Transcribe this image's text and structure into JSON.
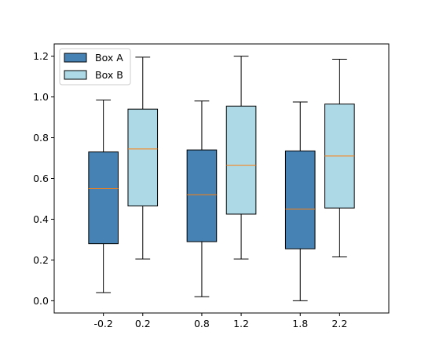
{
  "chart_data": {
    "type": "box",
    "title": "",
    "xlabel": "",
    "ylabel": "",
    "xlim": [
      -0.7,
      2.7
    ],
    "ylim": [
      -0.06,
      1.26
    ],
    "x_ticks": [
      -0.2,
      0.2,
      0.8,
      1.2,
      1.8,
      2.2
    ],
    "x_tick_labels": [
      "-0.2",
      "0.2",
      "0.8",
      "1.2",
      "1.8",
      "2.2"
    ],
    "y_ticks": [
      0.0,
      0.2,
      0.4,
      0.6,
      0.8,
      1.0,
      1.2
    ],
    "y_tick_labels": [
      "0.0",
      "0.2",
      "0.4",
      "0.6",
      "0.8",
      "1.0",
      "1.2"
    ],
    "grid": false,
    "legend_position": "top-left",
    "box_width": 0.3,
    "median_color": "#ff7f0e",
    "series": [
      {
        "name": "Box A",
        "color": "#4682b4",
        "boxes": [
          {
            "x": -0.2,
            "whisker_low": 0.04,
            "q1": 0.28,
            "median": 0.55,
            "q3": 0.73,
            "whisker_high": 0.985
          },
          {
            "x": 0.8,
            "whisker_low": 0.02,
            "q1": 0.29,
            "median": 0.52,
            "q3": 0.74,
            "whisker_high": 0.98
          },
          {
            "x": 1.8,
            "whisker_low": 0.0,
            "q1": 0.255,
            "median": 0.45,
            "q3": 0.735,
            "whisker_high": 0.975
          }
        ]
      },
      {
        "name": "Box B",
        "color": "#add8e6",
        "boxes": [
          {
            "x": 0.2,
            "whisker_low": 0.205,
            "q1": 0.465,
            "median": 0.745,
            "q3": 0.94,
            "whisker_high": 1.195
          },
          {
            "x": 1.2,
            "whisker_low": 0.205,
            "q1": 0.425,
            "median": 0.665,
            "q3": 0.955,
            "whisker_high": 1.2
          },
          {
            "x": 2.2,
            "whisker_low": 0.215,
            "q1": 0.455,
            "median": 0.71,
            "q3": 0.965,
            "whisker_high": 1.185
          }
        ]
      }
    ]
  }
}
